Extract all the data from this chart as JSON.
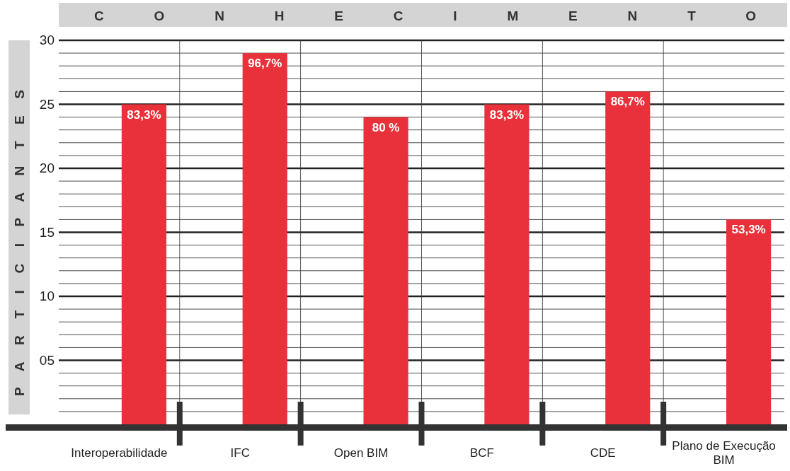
{
  "chart_data": {
    "type": "bar",
    "title": "CONHECIMENTO",
    "ylabel": "PARTICIPANTES",
    "categories": [
      "Interoperabilidade",
      "IFC",
      "Open BIM",
      "BCF",
      "CDE",
      "Plano de Execução BIM"
    ],
    "values": [
      25,
      29,
      24,
      25,
      26,
      16
    ],
    "annotations": [
      {
        "text": "83,3%",
        "x": "Interoperabilidade",
        "y": 25
      },
      {
        "text": "96,7%",
        "x": "IFC",
        "y": 29
      },
      {
        "text": "80 %",
        "x": "Open BIM",
        "y": 24
      },
      {
        "text": "83,3%",
        "x": "BCF",
        "y": 25
      },
      {
        "text": "86,7%",
        "x": "CDE",
        "y": 26
      },
      {
        "text": "53,3%",
        "x": "Plano de Execução BIM",
        "y": 16
      }
    ],
    "color": "#e8313a",
    "ylim": [
      0,
      30
    ],
    "yticks": [
      {
        "value": 1,
        "label": null
      },
      {
        "value": 2,
        "label": null
      },
      {
        "value": 3,
        "label": null
      },
      {
        "value": 4,
        "label": null
      },
      {
        "value": 5,
        "label": "05"
      },
      {
        "value": 6,
        "label": null
      },
      {
        "value": 7,
        "label": null
      },
      {
        "value": 8,
        "label": null
      },
      {
        "value": 9,
        "label": null
      },
      10,
      {
        "value": 11,
        "label": null
      },
      {
        "value": 12,
        "label": null
      },
      {
        "value": 13,
        "label": null
      },
      {
        "value": 14,
        "label": null
      },
      15,
      {
        "value": 16,
        "label": null
      },
      {
        "value": 17,
        "label": null
      },
      {
        "value": 18,
        "label": null
      },
      {
        "value": 19,
        "label": null
      },
      20,
      {
        "value": 21,
        "label": null
      },
      {
        "value": 22,
        "label": null
      },
      {
        "value": 23,
        "label": null
      },
      {
        "value": 24,
        "label": null
      },
      25,
      {
        "value": 26,
        "label": null
      },
      {
        "value": 27,
        "label": null
      },
      {
        "value": 28,
        "label": null
      },
      {
        "value": 29,
        "label": null
      },
      30
    ],
    "grid": true
  }
}
